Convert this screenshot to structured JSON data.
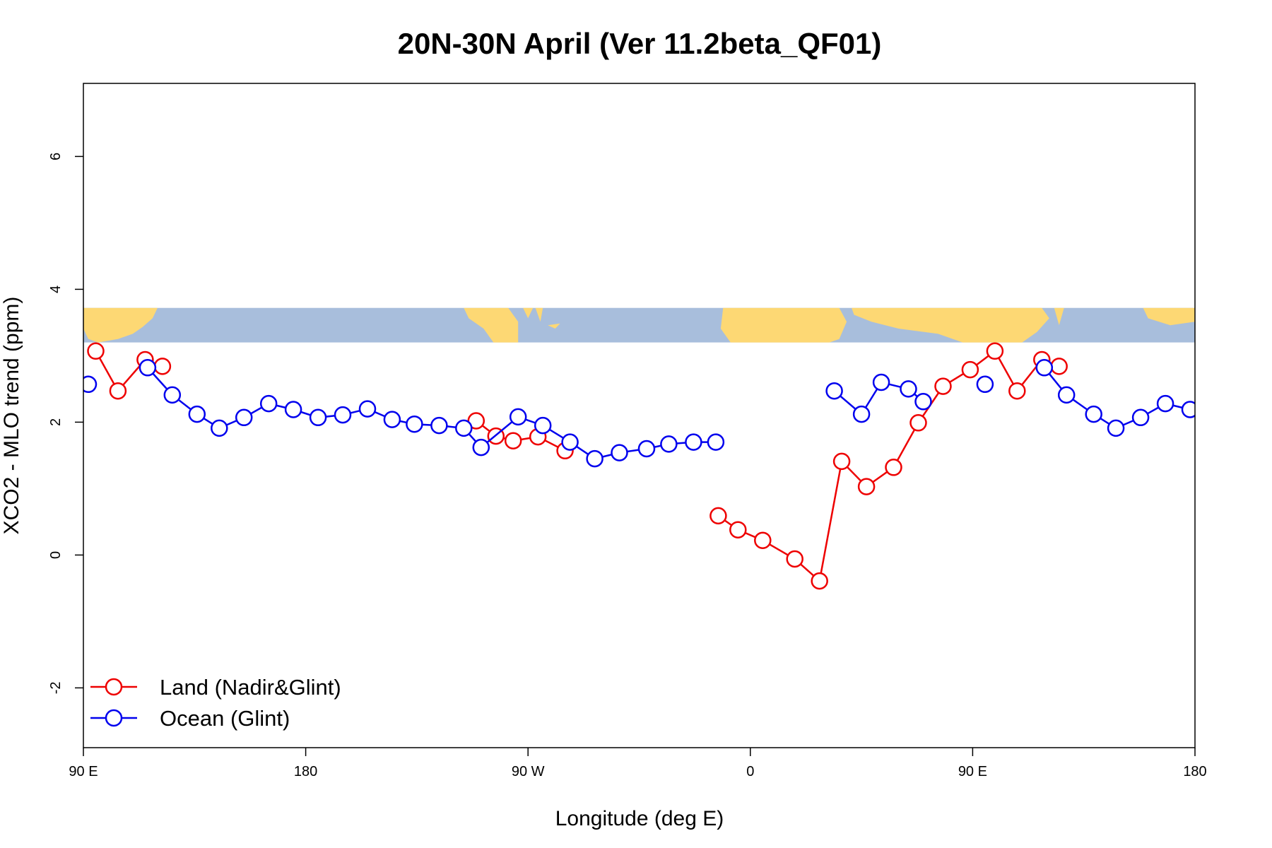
{
  "chart_data": {
    "type": "line",
    "title": "20N-30N April (Ver 11.2beta_QF01)",
    "xlabel": "Longitude (deg E)",
    "ylabel": "XCO2 - MLO trend (ppm)",
    "xlim": [
      90,
      540
    ],
    "ylim": [
      -2.9,
      7.1
    ],
    "x_ticks": [
      {
        "value": 90,
        "label": "90 E"
      },
      {
        "value": 180,
        "label": "180"
      },
      {
        "value": 270,
        "label": "90 W"
      },
      {
        "value": 360,
        "label": "0"
      },
      {
        "value": 450,
        "label": "90 E"
      },
      {
        "value": 540,
        "label": "180"
      }
    ],
    "y_ticks": [
      {
        "value": -2,
        "label": "-2"
      },
      {
        "value": 0,
        "label": "0"
      },
      {
        "value": 2,
        "label": "2"
      },
      {
        "value": 4,
        "label": "4"
      },
      {
        "value": 6,
        "label": "6"
      }
    ],
    "map_band": {
      "y_from": 3.2,
      "y_to": 3.72,
      "ocean_color": "#a8bedc",
      "land_color": "#fdd874"
    },
    "series": [
      {
        "name": "Land (Nadir&Glint)",
        "color": "#ee0000",
        "segments": [
          [
            [
              95,
              3.07
            ],
            [
              104,
              2.47
            ],
            [
              115,
              2.94
            ],
            [
              122,
              2.84
            ]
          ],
          [
            [
              249,
              2.02
            ],
            [
              257,
              1.79
            ],
            [
              264,
              1.72
            ],
            [
              274,
              1.78
            ],
            [
              285,
              1.57
            ]
          ],
          [
            [
              347,
              0.59
            ],
            [
              355,
              0.38
            ],
            [
              365,
              0.22
            ],
            [
              378,
              -0.06
            ],
            [
              388,
              -0.39
            ],
            [
              397,
              1.41
            ],
            [
              407,
              1.03
            ],
            [
              418,
              1.32
            ],
            [
              428,
              1.99
            ],
            [
              438,
              2.54
            ],
            [
              449,
              2.79
            ],
            [
              459,
              3.07
            ],
            [
              468,
              2.47
            ],
            [
              478,
              2.94
            ],
            [
              485,
              2.84
            ]
          ]
        ]
      },
      {
        "name": "Ocean (Glint)",
        "color": "#0000ee",
        "segments": [
          [
            [
              92,
              2.57
            ]
          ],
          [
            [
              116,
              2.82
            ],
            [
              126,
              2.41
            ],
            [
              136,
              2.12
            ],
            [
              145,
              1.91
            ],
            [
              155,
              2.07
            ],
            [
              165,
              2.28
            ],
            [
              175,
              2.19
            ],
            [
              185,
              2.07
            ],
            [
              195,
              2.11
            ],
            [
              205,
              2.2
            ],
            [
              215,
              2.04
            ],
            [
              224,
              1.97
            ],
            [
              234,
              1.95
            ],
            [
              244,
              1.91
            ],
            [
              251,
              1.62
            ],
            [
              266,
              2.08
            ],
            [
              276,
              1.95
            ],
            [
              287,
              1.7
            ],
            [
              297,
              1.45
            ],
            [
              307,
              1.54
            ],
            [
              318,
              1.6
            ],
            [
              327,
              1.67
            ],
            [
              337,
              1.7
            ],
            [
              346,
              1.7
            ]
          ],
          [
            [
              394,
              2.47
            ],
            [
              405,
              2.12
            ],
            [
              413,
              2.6
            ],
            [
              424,
              2.5
            ],
            [
              430,
              2.31
            ]
          ],
          [
            [
              455,
              2.57
            ]
          ],
          [
            [
              479,
              2.82
            ],
            [
              488,
              2.41
            ],
            [
              499,
              2.12
            ],
            [
              508,
              1.91
            ],
            [
              518,
              2.07
            ],
            [
              528,
              2.28
            ],
            [
              538,
              2.19
            ]
          ]
        ]
      }
    ]
  }
}
